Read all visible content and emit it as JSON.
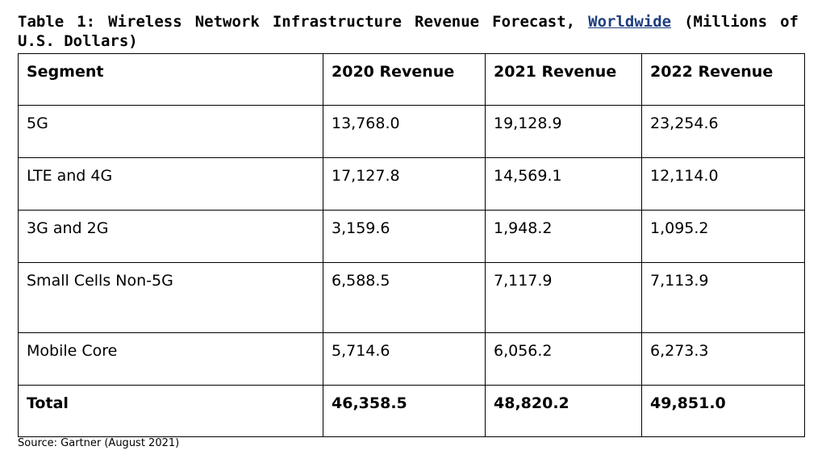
{
  "caption": {
    "part1": "Table 1: Wireless Network Infrastructure Revenue Forecast, ",
    "highlight": "Worldwide",
    "part2": " (Millions of U.S. Dollars)"
  },
  "table": {
    "headers": [
      "Segment",
      "2020 Revenue",
      "2021 Revenue",
      "2022 Revenue"
    ],
    "rows": [
      [
        "5G",
        "13,768.0",
        "19,128.9",
        "23,254.6"
      ],
      [
        "LTE and 4G",
        "17,127.8",
        "14,569.1",
        "12,114.0"
      ],
      [
        "3G and 2G",
        "3,159.6",
        "1,948.2",
        "1,095.2"
      ],
      [
        "Small Cells Non-5G",
        "6,588.5",
        "7,117.9",
        "7,113.9"
      ],
      [
        "Mobile Core",
        "5,714.6",
        "6,056.2",
        "6,273.3"
      ]
    ],
    "total": [
      "Total",
      "46,358.5",
      "48,820.2",
      "49,851.0"
    ]
  },
  "source": "Source: Gartner (August 2021)"
}
